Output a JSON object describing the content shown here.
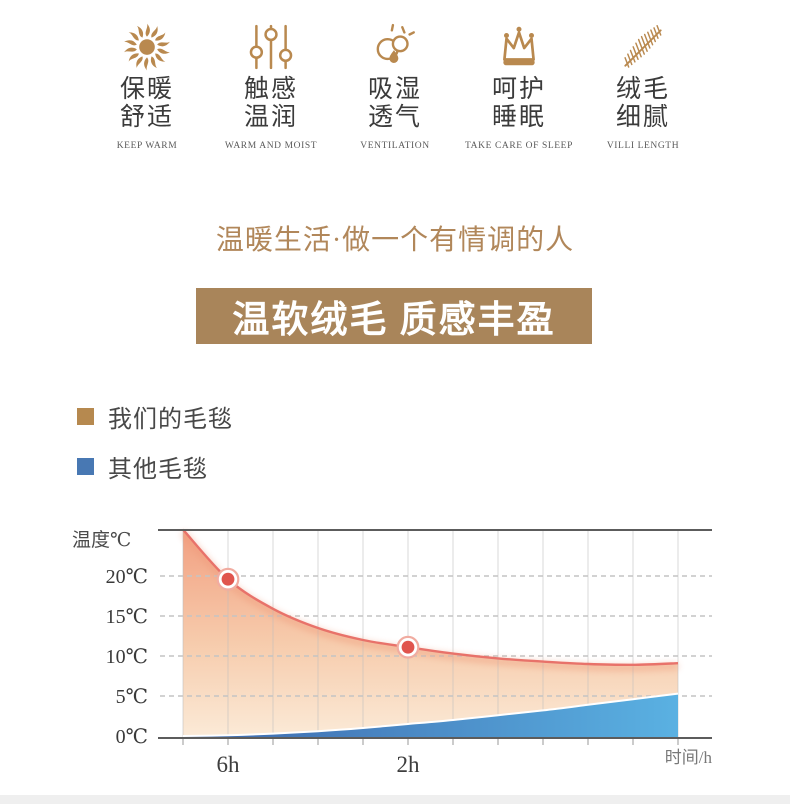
{
  "features": [
    {
      "line1": "保暖",
      "line2": "舒适",
      "caption": "KEEP WARM",
      "icon": "sun-icon"
    },
    {
      "line1": "触感",
      "line2": "温润",
      "caption": "WARM AND MOIST",
      "icon": "touch-sliders-icon"
    },
    {
      "line1": "吸湿",
      "line2": "透气",
      "caption": "VENTILATION",
      "icon": "moisture-cloud-icon"
    },
    {
      "line1": "呵护",
      "line2": "睡眠",
      "caption": "TAKE CARE OF SLEEP",
      "icon": "crown-icon"
    },
    {
      "line1": "绒毛",
      "line2": "细腻",
      "caption": "VILLI LENGTH",
      "icon": "feather-icon"
    }
  ],
  "slogan": "温暖生活·做一个有情调的人",
  "banner": {
    "text": "温软绒毛 质感丰盈",
    "bg_color": "#a9855a",
    "text_color": "#ffffff"
  },
  "legend": [
    {
      "label": "我们的毛毯",
      "color": "#b6894f"
    },
    {
      "label": "其他毛毯",
      "color": "#4878b3"
    }
  ],
  "colors": {
    "gold_accent": "#b9894f",
    "our_line": "#e8726a",
    "our_fill_top": "#f19a7a",
    "our_fill_bottom": "#fbe9d5",
    "other_fill_left": "#3d67ac",
    "other_fill_right": "#5ab1e2",
    "marker_red": "#e0544d"
  },
  "chart_data": {
    "type": "area",
    "title": "",
    "ylabel": "温度℃",
    "xlabel": "时间/h",
    "y_ticks": [
      0,
      5,
      10,
      15,
      20
    ],
    "y_tick_labels": [
      "0℃",
      "5℃",
      "10℃",
      "15℃",
      "20℃"
    ],
    "y_axis_top_value": 25.8,
    "x_gridline_count": 12,
    "x_tick_labels": [
      {
        "index": 1,
        "label": "6h"
      },
      {
        "index": 5,
        "label": "2h"
      }
    ],
    "series": [
      {
        "name": "我们的毛毯",
        "color": "#e8726a",
        "values": [
          25.8,
          19.6,
          15.9,
          13.5,
          12.0,
          11.1,
          10.3,
          9.7,
          9.3,
          9.0,
          8.9,
          9.1
        ]
      },
      {
        "name": "其他毛毯",
        "color": "#4f9fd6",
        "values": [
          0,
          0.1,
          0.3,
          0.6,
          1.0,
          1.5,
          2.0,
          2.6,
          3.2,
          3.9,
          4.6,
          5.3
        ]
      }
    ],
    "markers": [
      {
        "series": 0,
        "index": 1,
        "temp_c": 19.6,
        "at_label": "6h"
      },
      {
        "series": 0,
        "index": 5,
        "temp_c": 11.1,
        "at_label": "2h"
      }
    ],
    "legend_position": "above-left",
    "grid": true
  }
}
